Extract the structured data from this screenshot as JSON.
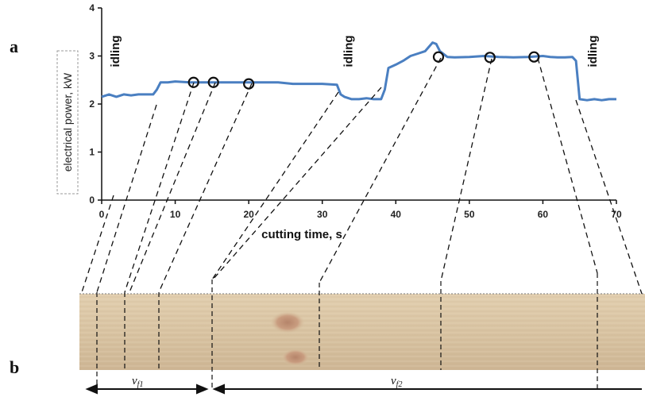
{
  "panels": {
    "a": "a",
    "b": "b"
  },
  "chart_data": {
    "type": "line",
    "xlabel": "cutting time, s",
    "ylabel": "electrical power, kW",
    "xlim": [
      0,
      70
    ],
    "ylim": [
      0,
      4
    ],
    "x_ticks": [
      "0",
      "10",
      "20",
      "30",
      "40",
      "50",
      "60",
      "70"
    ],
    "y_ticks": [
      "0",
      "1",
      "2",
      "3",
      "4"
    ],
    "grid": false,
    "line_color": "#4a7fc1",
    "series": [
      {
        "x": [
          0,
          1,
          2,
          3,
          4,
          5,
          6,
          7,
          7.5,
          8,
          9,
          10,
          12,
          14,
          16,
          18,
          20,
          22,
          24,
          26,
          28,
          30,
          32,
          32.5,
          33,
          34,
          35,
          36,
          37,
          38,
          38.5,
          39,
          40,
          41,
          42,
          43,
          44,
          45,
          45.5,
          46,
          47,
          48,
          50,
          52,
          54,
          56,
          58,
          60,
          61,
          62,
          63,
          64,
          64.5,
          65,
          66,
          67,
          68,
          69,
          70
        ],
        "y": [
          2.15,
          2.2,
          2.15,
          2.2,
          2.18,
          2.2,
          2.2,
          2.2,
          2.3,
          2.45,
          2.45,
          2.47,
          2.45,
          2.45,
          2.45,
          2.45,
          2.45,
          2.45,
          2.45,
          2.42,
          2.42,
          2.42,
          2.4,
          2.2,
          2.15,
          2.1,
          2.1,
          2.12,
          2.1,
          2.1,
          2.3,
          2.75,
          2.82,
          2.9,
          3.0,
          3.05,
          3.1,
          3.28,
          3.25,
          3.1,
          2.98,
          2.97,
          2.98,
          3.0,
          2.98,
          2.97,
          2.98,
          3.0,
          2.98,
          2.97,
          2.97,
          2.98,
          2.9,
          2.1,
          2.08,
          2.1,
          2.08,
          2.1,
          2.1
        ]
      }
    ],
    "markers": [
      {
        "x": 12.5,
        "y": 2.45
      },
      {
        "x": 15.2,
        "y": 2.45
      },
      {
        "x": 20,
        "y": 2.42
      },
      {
        "x": 45.8,
        "y": 2.98
      },
      {
        "x": 52.8,
        "y": 2.97
      },
      {
        "x": 58.8,
        "y": 2.98
      }
    ],
    "annotations": [
      {
        "text": "idling",
        "x": 2.4,
        "y": 3.1
      },
      {
        "text": "idling",
        "x": 34.1,
        "y": 3.1
      },
      {
        "text": "idling",
        "x": 67.3,
        "y": 3.1
      }
    ]
  },
  "workpiece": {
    "speed_labels": [
      {
        "main": "v",
        "sub": "f1"
      },
      {
        "main": "v",
        "sub": "f2"
      }
    ]
  }
}
